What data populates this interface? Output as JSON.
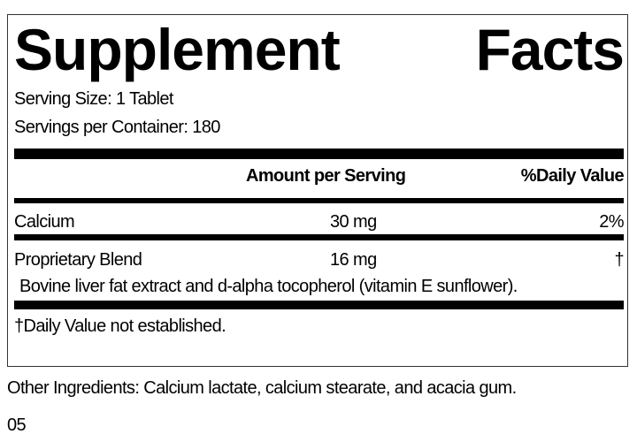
{
  "title": {
    "word1": "Supplement",
    "word2": "Facts"
  },
  "serving_size": "Serving Size: 1 Tablet",
  "servings_per_container": "Servings per Container: 180",
  "header": {
    "amount": "Amount per Serving",
    "dv": "%Daily Value"
  },
  "rows": [
    {
      "name": "Calcium",
      "amount": "30 mg",
      "dv": "2%"
    },
    {
      "name": "Proprietary Blend",
      "amount": "16 mg",
      "dv": "†",
      "detail": "Bovine liver fat extract and d-alpha tocopherol (vitamin E sunflower)."
    }
  ],
  "footnote": "†Daily Value not established.",
  "other_ingredients": "Other Ingredients: Calcium lactate, calcium stearate, and acacia gum.",
  "code": "05"
}
